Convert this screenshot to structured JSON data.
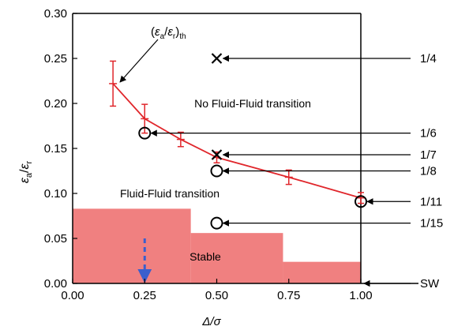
{
  "chart_data": {
    "type": "line",
    "xlabel": "Δ/σ",
    "ylabel": "εa/εr",
    "xlim": [
      0,
      1.2
    ],
    "ylim": [
      0,
      0.3
    ],
    "x_ticks": [
      0,
      0.25,
      0.5,
      0.75,
      1.0
    ],
    "x_tick_labels": [
      "0.00",
      "0.25",
      "0.50",
      "0.75",
      "1.00"
    ],
    "y_ticks": [
      0,
      0.05,
      0.1,
      0.15,
      0.2,
      0.25,
      0.3
    ],
    "y_tick_labels": [
      "0.00",
      "0.05",
      "0.10",
      "0.15",
      "0.20",
      "0.25",
      "0.30"
    ],
    "grid": false,
    "threshold_label": "(εa/εr)th",
    "series": [
      {
        "kind": "line-with-errorbars",
        "color": "#e0262b",
        "x": [
          0.14,
          0.25,
          0.375,
          0.5,
          0.75,
          1.0
        ],
        "y": [
          0.222,
          0.183,
          0.16,
          0.14,
          0.118,
          0.095
        ],
        "err": [
          0.025,
          0.016,
          0.008,
          0.006,
          0.008,
          0.006
        ]
      }
    ],
    "markers": [
      {
        "x": 0.5,
        "y": 0.25,
        "symbol": "x",
        "label": "1/4"
      },
      {
        "x": 0.25,
        "y": 0.167,
        "symbol": "o",
        "label": "1/6"
      },
      {
        "x": 0.5,
        "y": 0.143,
        "symbol": "x",
        "label": "1/7"
      },
      {
        "x": 0.5,
        "y": 0.125,
        "symbol": "o",
        "label": "1/8"
      },
      {
        "x": 1.0,
        "y": 0.091,
        "symbol": "o",
        "label": "1/11"
      },
      {
        "x": 0.5,
        "y": 0.067,
        "symbol": "o",
        "label": "1/15"
      },
      {
        "x": 1.0,
        "y": 0.0,
        "symbol": "none",
        "label": "SW"
      }
    ],
    "stable_region": {
      "color": "#f08080",
      "steps": [
        {
          "x0": 0,
          "x1": 0.41,
          "y": 0.083
        },
        {
          "x0": 0.41,
          "x1": 0.73,
          "y": 0.056
        },
        {
          "x0": 0.73,
          "x1": 1.0,
          "y": 0.024
        }
      ],
      "label": "Stable"
    },
    "blue_arrow": {
      "x": 0.25,
      "y_from": 0.05,
      "y_to": 0.0,
      "color": "#3a5fcd"
    },
    "annotations": [
      {
        "text": "No Fluid-Fluid transition",
        "x": 0.66,
        "y": 0.197
      },
      {
        "text": "Fluid-Fluid transition",
        "x": 0.2,
        "y": 0.098
      }
    ]
  }
}
